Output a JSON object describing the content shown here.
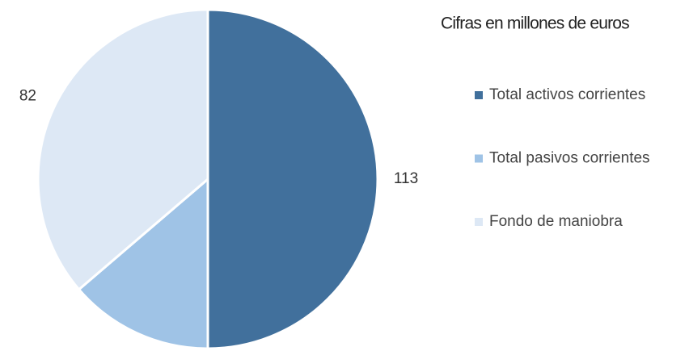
{
  "chart_data": {
    "type": "pie",
    "title": "Cifras en millones de euros",
    "categories": [
      "Total activos corrientes",
      "Total pasivos corrientes",
      "Fondo de maniobra"
    ],
    "values": [
      113,
      31,
      82
    ],
    "colors": [
      "#41709c",
      "#9fc3e6",
      "#dde8f5"
    ]
  }
}
